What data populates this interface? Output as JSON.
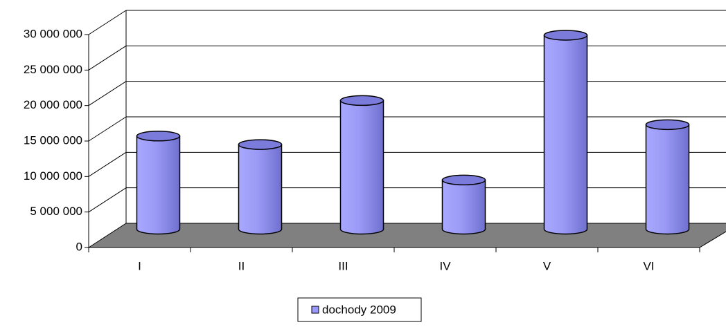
{
  "chart_data": {
    "type": "bar3d",
    "categories": [
      "I",
      "II",
      "III",
      "IV",
      "V",
      "VI"
    ],
    "series": [
      {
        "name": "dochody 2009",
        "color": "#9999ff",
        "values": [
          14000000,
          12800000,
          19000000,
          7800000,
          28200000,
          15600000
        ]
      }
    ],
    "ylim": [
      0,
      30000000
    ],
    "yticks": [
      {
        "value": 0,
        "label": "0"
      },
      {
        "value": 5000000,
        "label": "5 000 000"
      },
      {
        "value": 10000000,
        "label": "10 000 000"
      },
      {
        "value": 15000000,
        "label": "15 000 000"
      },
      {
        "value": 20000000,
        "label": "20 000 000"
      },
      {
        "value": 25000000,
        "label": "25 000 000"
      },
      {
        "value": 30000000,
        "label": "30 000 000"
      }
    ],
    "grid": true,
    "legend": "bottom"
  }
}
